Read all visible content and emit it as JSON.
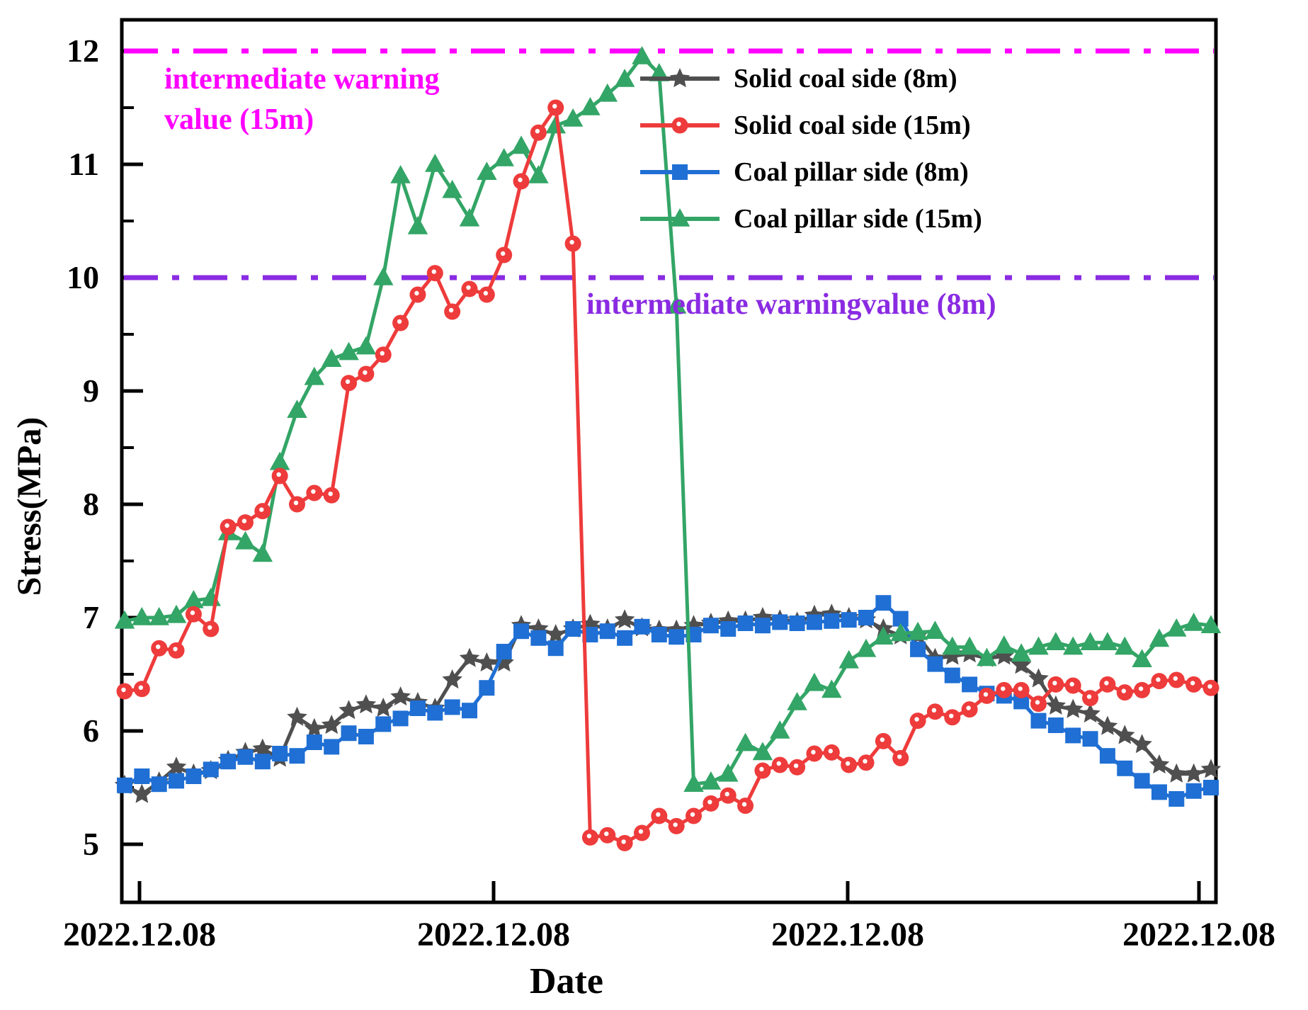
{
  "axes": {
    "y_label": "Stress(MPa)",
    "x_label": "Date",
    "y_ticks": [
      5,
      6,
      7,
      8,
      9,
      10,
      11,
      12
    ],
    "x_tick_labels": [
      "2022.12.08",
      "2022.12.08",
      "2022.12.08",
      "2022.12.08"
    ]
  },
  "annotations": {
    "warning_15m": {
      "line1": "intermediate warning",
      "line2": "value (15m)",
      "color": "#ff00ff"
    },
    "warning_8m": {
      "text": "intermediate warningvalue (8m)",
      "color": "#8a2be2"
    }
  },
  "chart_data": {
    "type": "line",
    "title": "",
    "xlabel": "Date",
    "ylabel": "Stress(MPa)",
    "ylim": [
      4.5,
      12.35
    ],
    "y_major_ticks": [
      5,
      6,
      7,
      8,
      9,
      10,
      11,
      12
    ],
    "y_minor_ticks": [
      5.5,
      6.5,
      7.5,
      8.5,
      9.5,
      10.5,
      11.5
    ],
    "x_tick_labels": [
      "2022.12.08",
      "2022.12.08",
      "2022.12.08",
      "2022.12.08"
    ],
    "grid": false,
    "legend_position": "upper right",
    "warning_lines": [
      {
        "label": "intermediate warning value (15m)",
        "value": 12,
        "color": "#ff00ff",
        "style": "dash-dot"
      },
      {
        "label": "intermediate warningvalue (8m)",
        "value": 10,
        "color": "#8a2be2",
        "style": "dash-dot"
      }
    ],
    "series": [
      {
        "name": "Solid coal side (8m)",
        "color": "#4f4f4f",
        "marker": "star",
        "values": [
          5.52,
          5.44,
          5.55,
          5.68,
          5.62,
          5.65,
          5.74,
          5.81,
          5.84,
          5.76,
          6.12,
          6.02,
          6.05,
          6.18,
          6.23,
          6.2,
          6.3,
          6.25,
          6.2,
          6.45,
          6.64,
          6.6,
          6.6,
          6.93,
          6.9,
          6.85,
          6.9,
          6.94,
          6.9,
          6.98,
          6.91,
          6.89,
          6.89,
          6.93,
          6.95,
          6.97,
          6.97,
          7.0,
          6.98,
          6.96,
          7.02,
          7.03,
          7.0,
          6.98,
          6.9,
          6.84,
          6.84,
          6.64,
          6.66,
          6.68,
          6.64,
          6.66,
          6.58,
          6.46,
          6.22,
          6.19,
          6.15,
          6.04,
          5.96,
          5.88,
          5.7,
          5.62,
          5.62,
          5.66
        ]
      },
      {
        "name": "Solid coal side (15m)",
        "color": "#ee3b3b",
        "marker": "circle",
        "values": [
          6.35,
          6.37,
          6.73,
          6.71,
          7.03,
          6.9,
          7.8,
          7.84,
          7.94,
          8.25,
          8.0,
          8.1,
          8.08,
          9.07,
          9.15,
          9.32,
          9.6,
          9.85,
          10.04,
          9.7,
          9.9,
          9.85,
          10.2,
          10.85,
          11.28,
          11.5,
          10.3,
          5.06,
          5.08,
          5.01,
          5.1,
          5.25,
          5.16,
          5.25,
          5.36,
          5.43,
          5.34,
          5.65,
          5.7,
          5.68,
          5.8,
          5.81,
          5.7,
          5.72,
          5.91,
          5.76,
          6.09,
          6.17,
          6.12,
          6.19,
          6.31,
          6.36,
          6.36,
          6.24,
          6.41,
          6.4,
          6.29,
          6.41,
          6.34,
          6.36,
          6.44,
          6.45,
          6.41,
          6.38
        ]
      },
      {
        "name": "Coal pillar side (8m)",
        "color": "#1f6fd4",
        "marker": "square",
        "values": [
          5.52,
          5.6,
          5.53,
          5.56,
          5.6,
          5.66,
          5.73,
          5.77,
          5.73,
          5.8,
          5.78,
          5.9,
          5.86,
          5.98,
          5.95,
          6.06,
          6.11,
          6.2,
          6.16,
          6.21,
          6.18,
          6.38,
          6.7,
          6.88,
          6.82,
          6.73,
          6.9,
          6.85,
          6.88,
          6.82,
          6.92,
          6.85,
          6.83,
          6.85,
          6.93,
          6.9,
          6.95,
          6.93,
          6.96,
          6.95,
          6.96,
          6.97,
          6.98,
          7.0,
          7.13,
          6.99,
          6.72,
          6.59,
          6.49,
          6.41,
          6.33,
          6.31,
          6.26,
          6.09,
          6.05,
          5.96,
          5.93,
          5.78,
          5.67,
          5.56,
          5.46,
          5.4,
          5.47,
          5.5
        ]
      },
      {
        "name": "Coal pillar side (15m)",
        "color": "#33a566",
        "marker": "triangle",
        "values": [
          6.97,
          7.0,
          7.0,
          7.02,
          7.15,
          7.17,
          7.75,
          7.67,
          7.56,
          8.37,
          8.83,
          9.12,
          9.28,
          9.34,
          9.39,
          10.0,
          10.9,
          10.45,
          11.0,
          10.77,
          10.52,
          10.93,
          11.05,
          11.16,
          10.9,
          11.34,
          11.4,
          11.5,
          11.62,
          11.75,
          11.95,
          11.8,
          9.75,
          5.53,
          5.55,
          5.62,
          5.89,
          5.81,
          6.0,
          6.25,
          6.42,
          6.36,
          6.62,
          6.72,
          6.83,
          6.86,
          6.87,
          6.88,
          6.74,
          6.74,
          6.64,
          6.75,
          6.68,
          6.74,
          6.78,
          6.74,
          6.78,
          6.78,
          6.74,
          6.63,
          6.81,
          6.9,
          6.95,
          6.93
        ]
      }
    ]
  }
}
